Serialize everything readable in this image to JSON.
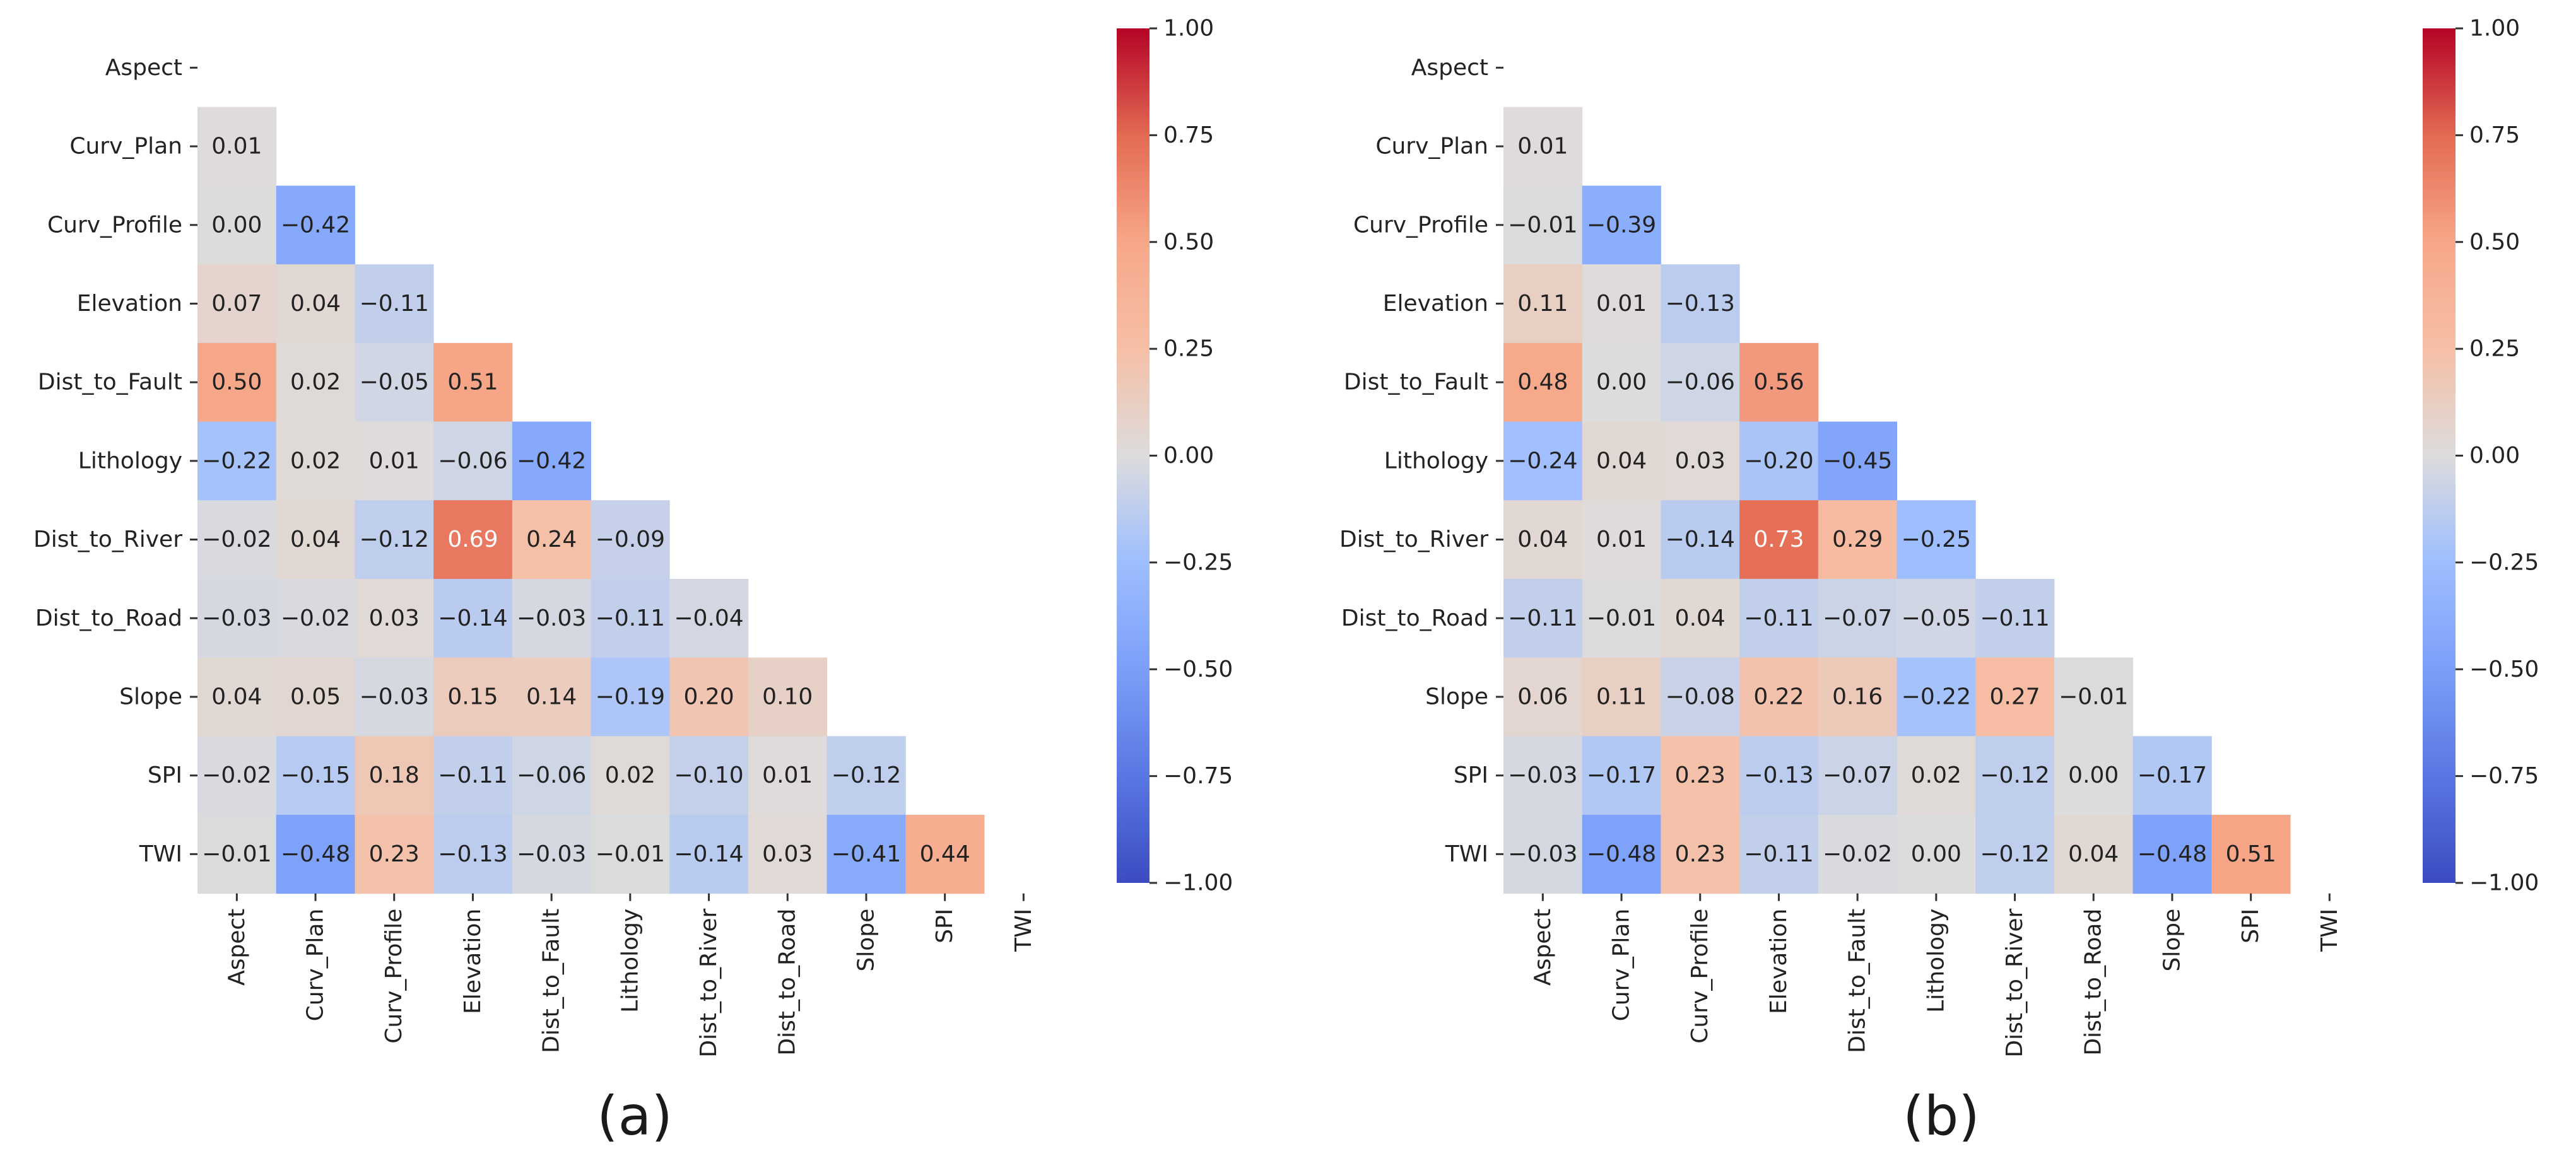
{
  "chart_data": [
    {
      "type": "heatmap",
      "panel_label": "(a)",
      "variables": [
        "Aspect",
        "Curv_Plan",
        "Curv_Profile",
        "Elevation",
        "Dist_to_Fault",
        "Lithology",
        "Dist_to_River",
        "Dist_to_Road",
        "Slope",
        "SPI",
        "TWI"
      ],
      "mask": "upper-triangle-and-diagonal",
      "lower_triangle": [
        [],
        [
          "0.01"
        ],
        [
          "0.00",
          "-0.42"
        ],
        [
          "0.07",
          "0.04",
          "-0.11"
        ],
        [
          "0.50",
          "0.02",
          "-0.05",
          "0.51"
        ],
        [
          "-0.22",
          "0.02",
          "0.01",
          "-0.06",
          "-0.42"
        ],
        [
          "-0.02",
          "0.04",
          "-0.12",
          "0.69",
          "0.24",
          "-0.09"
        ],
        [
          "-0.03",
          "-0.02",
          "0.03",
          "-0.14",
          "-0.03",
          "-0.11",
          "-0.04"
        ],
        [
          "0.04",
          "0.05",
          "-0.03",
          "0.15",
          "0.14",
          "-0.19",
          "0.20",
          "0.10"
        ],
        [
          "-0.02",
          "-0.15",
          "0.18",
          "-0.11",
          "-0.06",
          "0.02",
          "-0.10",
          "0.01",
          "-0.12"
        ],
        [
          "-0.01",
          "-0.48",
          "0.23",
          "-0.13",
          "-0.03",
          "-0.01",
          "-0.14",
          "0.03",
          "-0.41",
          "0.44"
        ]
      ],
      "colorbar": {
        "cmap": "coolwarm",
        "range": [
          -1,
          1
        ],
        "ticks": [
          "1.00",
          "0.75",
          "0.50",
          "0.25",
          "0.00",
          "-0.25",
          "-0.50",
          "-0.75",
          "-1.00"
        ]
      }
    },
    {
      "type": "heatmap",
      "panel_label": "(b)",
      "variables": [
        "Aspect",
        "Curv_Plan",
        "Curv_Profile",
        "Elevation",
        "Dist_to_Fault",
        "Lithology",
        "Dist_to_River",
        "Dist_to_Road",
        "Slope",
        "SPI",
        "TWI"
      ],
      "mask": "upper-triangle-and-diagonal",
      "lower_triangle": [
        [],
        [
          "0.01"
        ],
        [
          "-0.01",
          "-0.39"
        ],
        [
          "0.11",
          "0.01",
          "-0.13"
        ],
        [
          "0.48",
          "0.00",
          "-0.06",
          "0.56"
        ],
        [
          "-0.24",
          "0.04",
          "0.03",
          "-0.20",
          "-0.45"
        ],
        [
          "0.04",
          "0.01",
          "-0.14",
          "0.73",
          "0.29",
          "-0.25"
        ],
        [
          "-0.11",
          "-0.01",
          "0.04",
          "-0.11",
          "-0.07",
          "-0.05",
          "-0.11"
        ],
        [
          "0.06",
          "0.11",
          "-0.08",
          "0.22",
          "0.16",
          "-0.22",
          "0.27",
          "-0.01"
        ],
        [
          "-0.03",
          "-0.17",
          "0.23",
          "-0.13",
          "-0.07",
          "0.02",
          "-0.12",
          "0.00",
          "-0.17"
        ],
        [
          "-0.03",
          "-0.48",
          "0.23",
          "-0.11",
          "-0.02",
          "0.00",
          "-0.12",
          "0.04",
          "-0.48",
          "0.51"
        ]
      ],
      "colorbar": {
        "cmap": "coolwarm",
        "range": [
          -1,
          1
        ],
        "ticks": [
          "1.00",
          "0.75",
          "0.50",
          "0.25",
          "0.00",
          "-0.25",
          "-0.50",
          "-0.75",
          "-1.00"
        ]
      }
    }
  ]
}
